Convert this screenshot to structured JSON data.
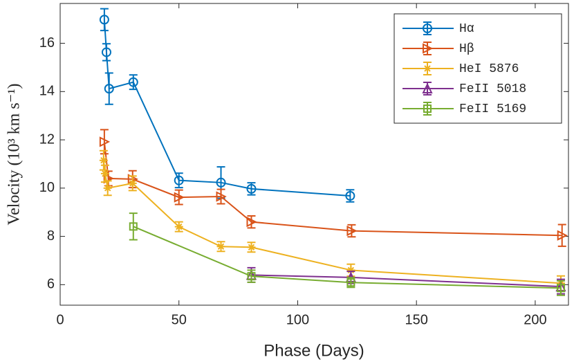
{
  "chart_data": {
    "type": "errorbar_line",
    "xlabel": "Phase (Days)",
    "ylabel": "Velocity (10³ km s⁻¹)",
    "xlim": [
      0,
      214
    ],
    "ylim": [
      5.15,
      17.65
    ],
    "xticks": [
      0,
      50,
      100,
      150,
      200
    ],
    "yticks": [
      6,
      8,
      10,
      12,
      14,
      16
    ],
    "legend": "upper right",
    "series": [
      {
        "name": "Hα",
        "color": "#0072BD",
        "marker": "circle",
        "x": [
          18.6,
          19.5,
          20.6,
          30.8,
          50,
          67.7,
          80.5,
          122.1
        ],
        "values": [
          16.98,
          15.63,
          14.12,
          14.39,
          10.32,
          10.23,
          9.97,
          9.68
        ],
        "errors": [
          0.45,
          0.35,
          0.65,
          0.3,
          0.3,
          0.65,
          0.25,
          0.25
        ]
      },
      {
        "name": "Hβ",
        "color": "#D95319",
        "marker": "triangle-right",
        "x": [
          18.6,
          20.3,
          30.5,
          50,
          67.7,
          80.5,
          122.7,
          211.3
        ],
        "values": [
          11.92,
          10.4,
          10.37,
          9.62,
          9.65,
          8.6,
          8.23,
          8.04
        ],
        "errors": [
          0.5,
          0.3,
          0.35,
          0.3,
          0.3,
          0.25,
          0.25,
          0.45
        ]
      },
      {
        "name": "HeI 5876",
        "color": "#EDB120",
        "marker": "asterisk",
        "x": [
          18.3,
          18.9,
          20,
          30.5,
          50,
          67.7,
          80.5,
          122.4,
          210.8
        ],
        "values": [
          11.15,
          10.6,
          10,
          10.2,
          8.4,
          7.58,
          7.55,
          6.6,
          6.06
        ],
        "errors": [
          0.4,
          0.35,
          0.3,
          0.3,
          0.2,
          0.2,
          0.2,
          0.25,
          0.3
        ]
      },
      {
        "name": "FeII 5018",
        "color": "#7E2F8E",
        "marker": "triangle-up",
        "x": [
          80.5,
          122.4,
          210.8
        ],
        "values": [
          6.4,
          6.3,
          5.92
        ],
        "errors": [
          0.3,
          0.25,
          0.3
        ]
      },
      {
        "name": "FeII 5169",
        "color": "#77AC30",
        "marker": "square",
        "x": [
          30.8,
          80.5,
          122.4,
          210.8
        ],
        "values": [
          8.41,
          6.35,
          6.09,
          5.86
        ],
        "errors": [
          0.55,
          0.25,
          0.2,
          0.3
        ]
      }
    ]
  }
}
